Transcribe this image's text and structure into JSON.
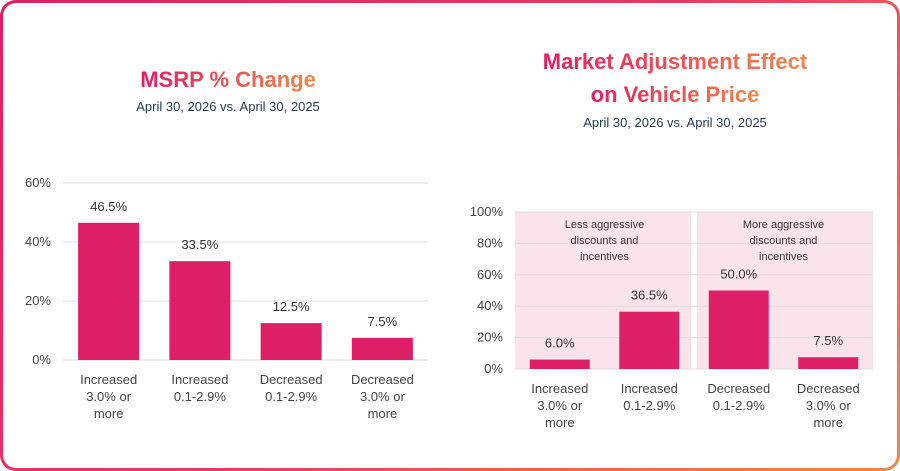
{
  "colors": {
    "bar": "#dd1f66",
    "grid": "#dcdcdc",
    "band": "#fbe3ec",
    "title_start": "#e11d63",
    "title_end": "#f0894a"
  },
  "chart_data": [
    {
      "type": "bar",
      "title": "MSRP % Change",
      "subtitle": "April 30, 2026 vs. April 30, 2025",
      "categories": [
        [
          "Increased",
          "3.0% or",
          "more"
        ],
        [
          "Increased",
          "0.1-2.9%"
        ],
        [
          "Decreased",
          "0.1-2.9%"
        ],
        [
          "Decreased",
          "3.0% or",
          "more"
        ]
      ],
      "values": [
        46.5,
        33.5,
        12.5,
        7.5
      ],
      "value_labels": [
        "46.5%",
        "33.5%",
        "12.5%",
        "7.5%"
      ],
      "ylim": [
        0,
        60
      ],
      "yticks": [
        0,
        20,
        40,
        60
      ],
      "ytick_labels": [
        "0%",
        "20%",
        "40%",
        "60%"
      ],
      "grid": true,
      "legend": "none"
    },
    {
      "type": "bar",
      "title": "Market Adjustment Effect\non Vehicle Price",
      "title_lines": [
        "Market Adjustment Effect",
        "on Vehicle Price"
      ],
      "subtitle": "April 30, 2026 vs. April 30, 2025",
      "categories": [
        [
          "Increased",
          "3.0% or",
          "more"
        ],
        [
          "Increased",
          "0.1-2.9%"
        ],
        [
          "Decreased",
          "0.1-2.9%"
        ],
        [
          "Decreased",
          "3.0% or",
          "more"
        ]
      ],
      "values": [
        6.0,
        36.5,
        50.0,
        7.5
      ],
      "value_labels": [
        "6.0%",
        "36.5%",
        "50.0%",
        "7.5%"
      ],
      "ylim": [
        0,
        100
      ],
      "yticks": [
        0,
        20,
        40,
        60,
        80,
        100
      ],
      "ytick_labels": [
        "0%",
        "20%",
        "40%",
        "60%",
        "80%",
        "100%"
      ],
      "grid": true,
      "legend": "none",
      "annotations": [
        {
          "covers": [
            0,
            1
          ],
          "lines": [
            "Less aggressive",
            "discounts and",
            "incentives"
          ]
        },
        {
          "covers": [
            2,
            3
          ],
          "lines": [
            "More aggressive",
            "discounts and",
            "incentives"
          ]
        }
      ]
    }
  ]
}
